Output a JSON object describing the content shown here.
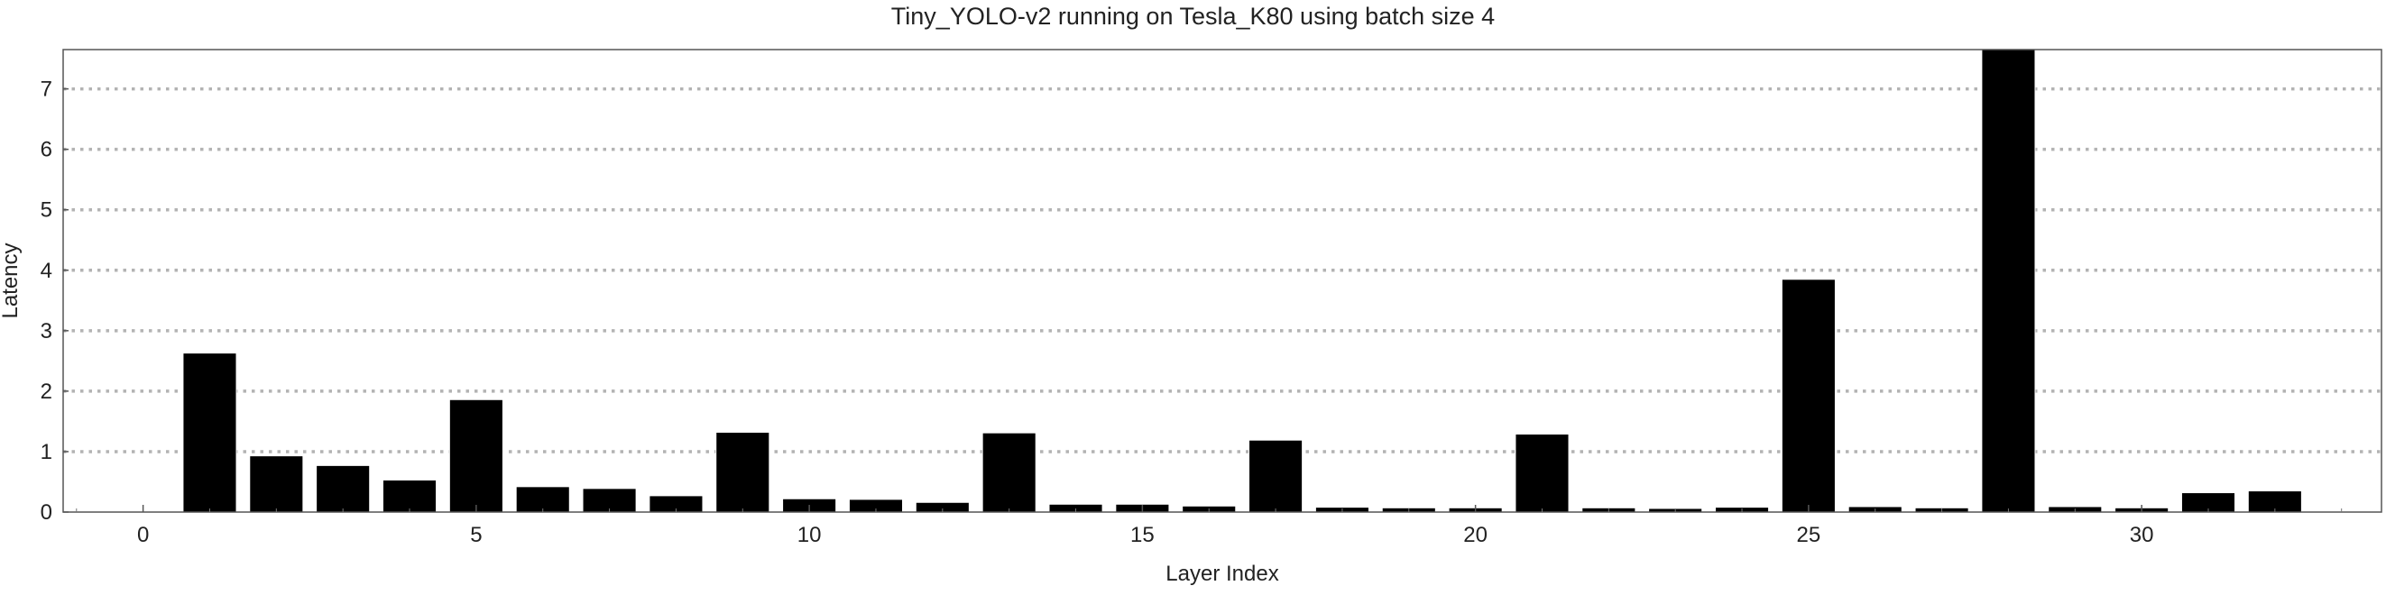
{
  "chart_data": {
    "type": "bar",
    "title": "Tiny_YOLO-v2 running on Tesla_K80 using batch size 4",
    "xlabel": "Layer Index",
    "ylabel": "Latency",
    "xlim": [
      -1.2,
      33.6
    ],
    "ylim": [
      0,
      7.65
    ],
    "x_ticks": [
      0,
      5,
      10,
      15,
      20,
      25,
      30
    ],
    "y_ticks": [
      0,
      1,
      2,
      3,
      4,
      5,
      6,
      7
    ],
    "grid": "horizontal dotted",
    "bar_color": "#000000",
    "x": [
      1,
      2,
      3,
      4,
      5,
      6,
      7,
      8,
      9,
      10,
      11,
      12,
      13,
      14,
      15,
      16,
      17,
      18,
      19,
      20,
      21,
      22,
      23,
      24,
      25,
      26,
      27,
      28,
      29,
      30,
      31,
      32
    ],
    "values": [
      2.63,
      0.93,
      0.77,
      0.53,
      1.86,
      0.42,
      0.39,
      0.27,
      1.32,
      0.22,
      0.21,
      0.16,
      1.31,
      0.13,
      0.13,
      0.1,
      1.19,
      0.08,
      0.07,
      0.07,
      1.29,
      0.07,
      0.06,
      0.08,
      3.85,
      0.09,
      0.07,
      7.65,
      0.09,
      0.07,
      0.32,
      0.35
    ]
  }
}
